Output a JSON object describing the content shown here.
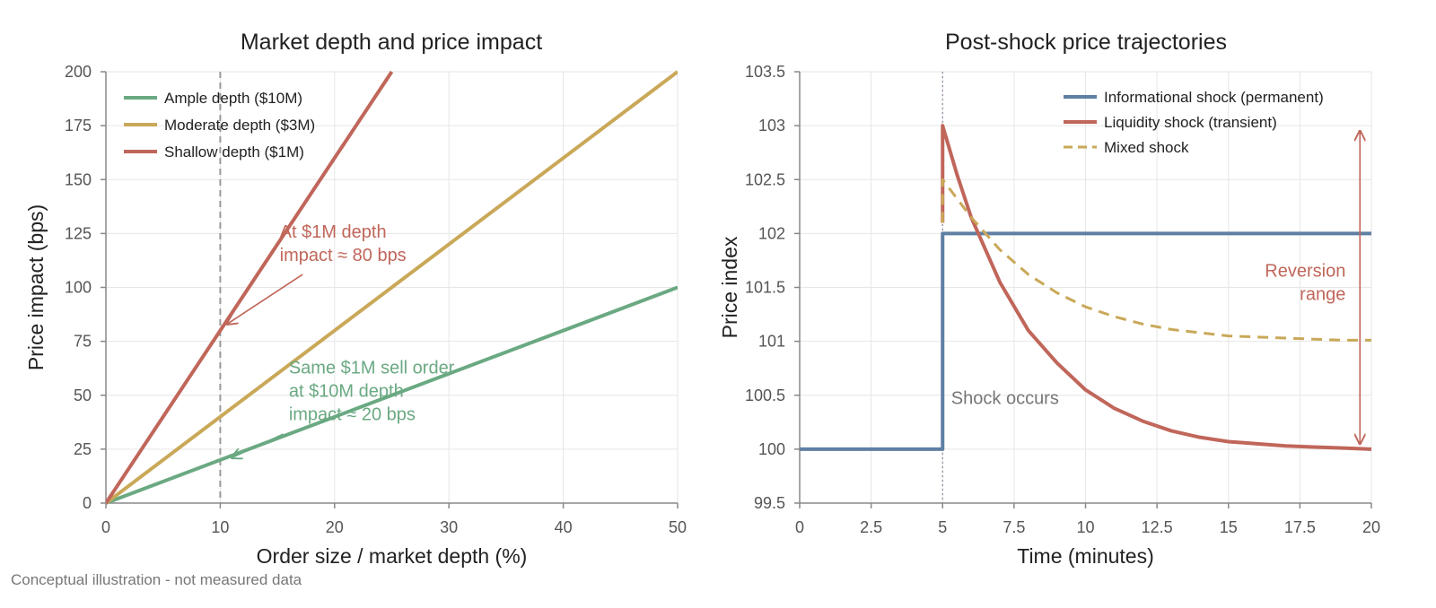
{
  "colors": {
    "green": "#6aa982",
    "gold": "#c9a858",
    "red": "#c0665a",
    "blue": "#5f7fa3",
    "gray_text": "#777777"
  },
  "footnote": "Conceptual illustration - not measured data",
  "chart_data": [
    {
      "type": "line",
      "title": "Market depth and price impact",
      "xlabel": "Order size / market depth (%)",
      "ylabel": "Price impact (bps)",
      "xlim": [
        0,
        50
      ],
      "ylim": [
        0,
        200
      ],
      "xticks": [
        "0",
        "10",
        "20",
        "30",
        "40",
        "50"
      ],
      "yticks": [
        "0",
        "25",
        "50",
        "75",
        "100",
        "125",
        "150",
        "175",
        "200"
      ],
      "grid": true,
      "legend_position": "top-left",
      "vline_x": 10,
      "series": [
        {
          "name": "Ample depth ($10M)",
          "color": "green",
          "x": [
            0,
            50
          ],
          "y": [
            0,
            100
          ]
        },
        {
          "name": "Moderate depth ($3M)",
          "color": "gold",
          "x": [
            0,
            50
          ],
          "y": [
            0,
            200
          ]
        },
        {
          "name": "Shallow depth ($1M)",
          "color": "red",
          "x": [
            0,
            25
          ],
          "y": [
            0,
            200
          ]
        }
      ],
      "annotations": [
        {
          "lines": [
            "At $1M depth",
            "impact ≈ 80 bps"
          ],
          "color": "red",
          "text_x": 15.2,
          "text_y": 123,
          "arrow_from": [
            17.2,
            106
          ],
          "arrow_to": [
            10.6,
            83
          ]
        },
        {
          "lines": [
            "Same $1M sell order",
            "at $10M depth",
            "impact ≈ 20 bps"
          ],
          "color": "green",
          "text_x": 16,
          "text_y": 60,
          "arrow_from": [
            15.5,
            32
          ],
          "arrow_to": [
            11,
            21
          ]
        }
      ]
    },
    {
      "type": "line",
      "title": "Post-shock price trajectories",
      "xlabel": "Time (minutes)",
      "ylabel": "Price index",
      "xlim": [
        0,
        20
      ],
      "ylim": [
        99.5,
        103.5
      ],
      "xticks": [
        "0",
        "2.5",
        "5",
        "7.5",
        "10",
        "12.5",
        "15",
        "17.5",
        "20"
      ],
      "yticks": [
        "99.5",
        "100",
        "100.5",
        "101",
        "101.5",
        "102",
        "102.5",
        "103",
        "103.5"
      ],
      "grid": true,
      "legend_position": "top-right",
      "vline_x": 5,
      "series": [
        {
          "name": "Informational shock (permanent)",
          "color": "blue",
          "style": "solid",
          "x": [
            0,
            5,
            5,
            20
          ],
          "y": [
            100,
            100,
            102,
            102
          ]
        },
        {
          "name": "Liquidity shock (transient)",
          "color": "red",
          "style": "solid",
          "x": [
            5,
            5,
            5.5,
            6,
            7,
            8,
            9,
            10,
            11,
            12,
            13,
            14,
            15,
            16,
            17,
            18,
            19,
            20
          ],
          "y": [
            102.1,
            103,
            102.55,
            102.15,
            101.55,
            101.1,
            100.8,
            100.55,
            100.38,
            100.26,
            100.17,
            100.11,
            100.07,
            100.05,
            100.03,
            100.02,
            100.01,
            100.0
          ]
        },
        {
          "name": "Mixed shock",
          "color": "gold",
          "style": "dashed",
          "x": [
            5,
            5,
            6,
            7,
            8,
            9,
            10,
            11,
            12,
            13,
            14,
            15,
            16,
            17,
            18,
            19,
            20
          ],
          "y": [
            102.1,
            102.5,
            102.15,
            101.85,
            101.62,
            101.45,
            101.32,
            101.23,
            101.16,
            101.11,
            101.08,
            101.05,
            101.04,
            101.03,
            101.02,
            101.01,
            101.01
          ]
        }
      ],
      "annotations": [
        {
          "lines": [
            "Reversion",
            "range"
          ],
          "color": "red",
          "text_x": 19.1,
          "text_y": 101.6,
          "anchor": "end"
        },
        {
          "lines": [
            "Shock occurs"
          ],
          "color": "gray_text",
          "text_x": 5.3,
          "text_y": 100.42
        }
      ],
      "range_arrow": {
        "x": 19.6,
        "y_from": 100.05,
        "y_to": 102.95,
        "color": "red"
      }
    }
  ]
}
